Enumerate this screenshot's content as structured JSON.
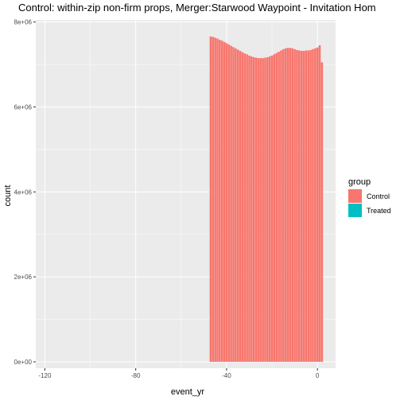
{
  "chart_data": {
    "type": "bar",
    "title": "Control: within-zip non-firm props, Merger:Starwood Waypoint - Invitation Hom",
    "xlabel": "event_yr",
    "ylabel": "count",
    "xlim": [
      -124,
      8
    ],
    "ylim": [
      -150000,
      8050000
    ],
    "x_ticks": [
      -120,
      -80,
      -40,
      0
    ],
    "x_tick_labels": [
      "-120",
      "-80",
      "-40",
      "0"
    ],
    "y_ticks": [
      0,
      2000000,
      4000000,
      6000000,
      8000000
    ],
    "y_tick_labels": [
      "0e+00",
      "2e+06",
      "4e+06",
      "6e+06",
      "8e+06"
    ],
    "grid": true,
    "legend": {
      "title": "group",
      "position": "right",
      "entries": [
        "Control",
        "Treated"
      ]
    },
    "colors": {
      "Control": "#F8766D",
      "Treated": "#00BFC4",
      "panel": "#EBEBEB",
      "grid": "#FFFFFF"
    },
    "series": [
      {
        "name": "Control",
        "x": [
          -47,
          -46,
          -45,
          -44,
          -43,
          -42,
          -41,
          -40,
          -39,
          -38,
          -37,
          -36,
          -35,
          -34,
          -33,
          -32,
          -31,
          -30,
          -29,
          -28,
          -27,
          -26,
          -25,
          -24,
          -23,
          -22,
          -21,
          -20,
          -19,
          -18,
          -17,
          -16,
          -15,
          -14,
          -13,
          -12,
          -11,
          -10,
          -9,
          -8,
          -7,
          -6,
          -5,
          -4,
          -3,
          -2,
          -1,
          0,
          1,
          2
        ],
        "values": [
          7660000,
          7650000,
          7630000,
          7610000,
          7580000,
          7560000,
          7530000,
          7500000,
          7470000,
          7440000,
          7410000,
          7380000,
          7350000,
          7320000,
          7290000,
          7260000,
          7240000,
          7210000,
          7190000,
          7170000,
          7160000,
          7150000,
          7150000,
          7150000,
          7160000,
          7170000,
          7190000,
          7210000,
          7240000,
          7270000,
          7300000,
          7330000,
          7360000,
          7380000,
          7390000,
          7390000,
          7380000,
          7360000,
          7340000,
          7330000,
          7320000,
          7320000,
          7330000,
          7330000,
          7340000,
          7360000,
          7380000,
          7400000,
          7450000,
          7050000
        ]
      },
      {
        "name": "Treated",
        "x": [],
        "values": []
      }
    ]
  }
}
